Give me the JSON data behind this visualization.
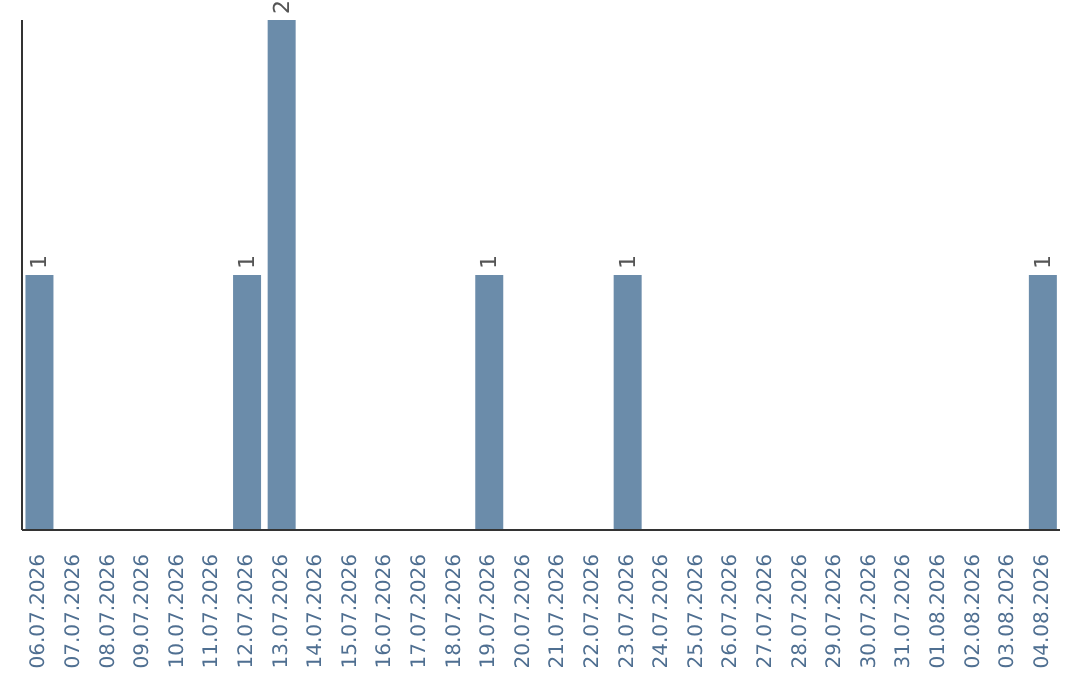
{
  "chart_data": {
    "type": "bar",
    "categories": [
      "06.07.2026",
      "07.07.2026",
      "08.07.2026",
      "09.07.2026",
      "10.07.2026",
      "11.07.2026",
      "12.07.2026",
      "13.07.2026",
      "14.07.2026",
      "15.07.2026",
      "16.07.2026",
      "17.07.2026",
      "18.07.2026",
      "19.07.2026",
      "20.07.2026",
      "21.07.2026",
      "22.07.2026",
      "23.07.2026",
      "24.07.2026",
      "25.07.2026",
      "26.07.2026",
      "27.07.2026",
      "28.07.2026",
      "29.07.2026",
      "30.07.2026",
      "31.07.2026",
      "01.08.2026",
      "02.08.2026",
      "03.08.2026",
      "04.08.2026"
    ],
    "values": [
      1,
      0,
      0,
      0,
      0,
      0,
      1,
      2,
      0,
      0,
      0,
      0,
      0,
      1,
      0,
      0,
      0,
      1,
      0,
      0,
      0,
      0,
      0,
      0,
      0,
      0,
      0,
      0,
      0,
      1
    ],
    "value_labels": [
      "1",
      null,
      null,
      null,
      null,
      null,
      "1",
      "2",
      null,
      null,
      null,
      null,
      null,
      "1",
      null,
      null,
      null,
      "1",
      null,
      null,
      null,
      null,
      null,
      null,
      null,
      null,
      null,
      null,
      null,
      "1"
    ],
    "color": "#6b8caa",
    "ylim": [
      0,
      2
    ]
  }
}
